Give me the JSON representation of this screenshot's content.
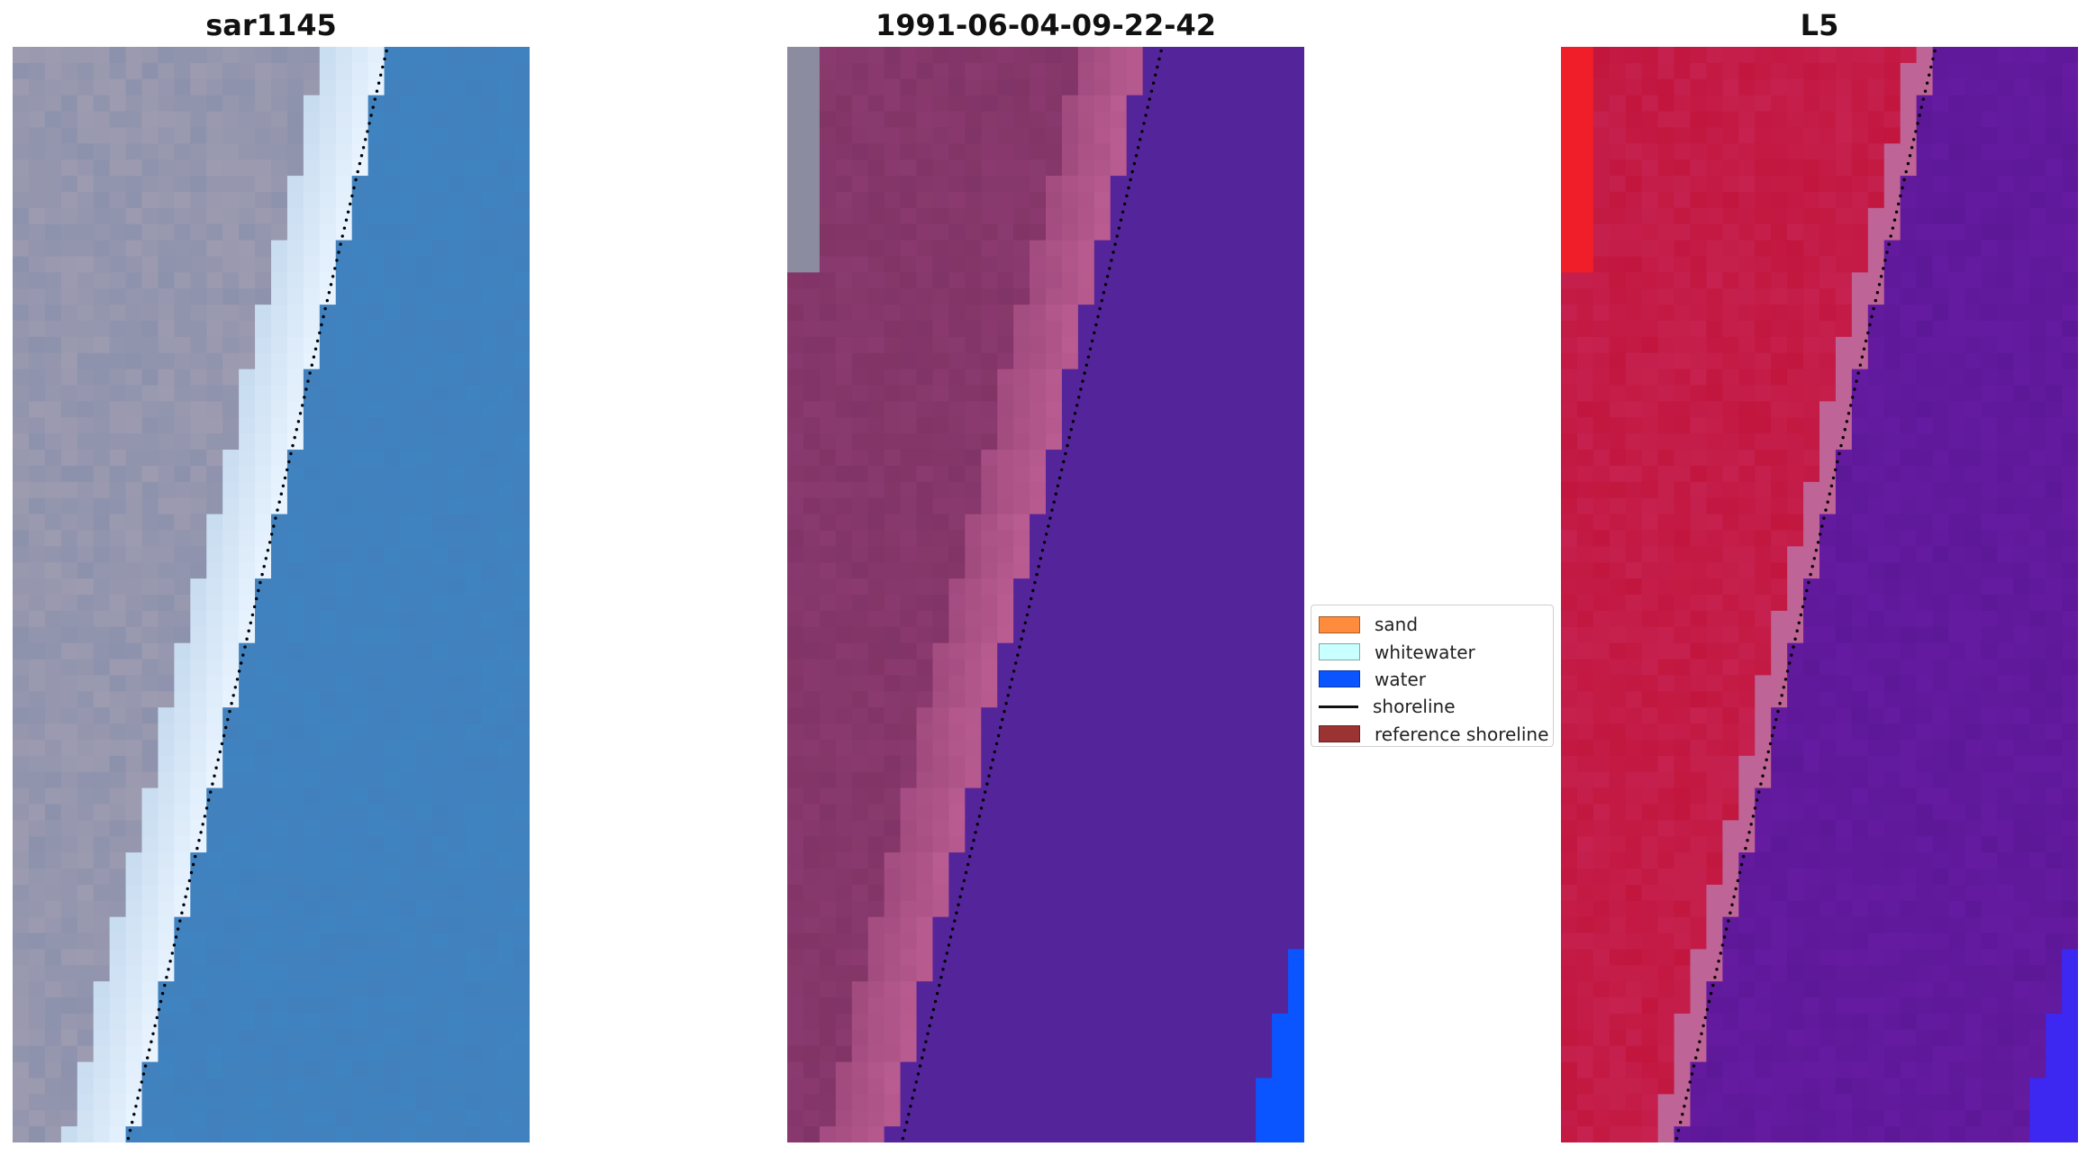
{
  "panels": [
    {
      "title": "sar1145",
      "kind": "rgb"
    },
    {
      "title": "1991-06-04-09-22-42",
      "kind": "classified"
    },
    {
      "title": "L5",
      "kind": "index"
    }
  ],
  "legend": {
    "items": [
      {
        "label": "sand",
        "color": "#ff8c3c",
        "type": "patch"
      },
      {
        "label": "whitewater",
        "color": "#c8ffff",
        "type": "patch"
      },
      {
        "label": "water",
        "color": "#0a55ff",
        "type": "patch"
      },
      {
        "label": "shoreline",
        "color": "#111111",
        "type": "line"
      },
      {
        "label": "reference shoreline",
        "color": "#9c3333",
        "type": "patch"
      }
    ]
  },
  "colors": {
    "water_rgb": "#3f83c0",
    "land_rgb": "#9d9bb0",
    "whitewater_rgb": "#e9f4ff",
    "water_class": "#54259a",
    "sand_overlay": "#c06196",
    "land_class": "#8a3a6e",
    "water_index": "#5d1898",
    "land_index": "#c2163e",
    "shoreline_dots": "#000000"
  }
}
